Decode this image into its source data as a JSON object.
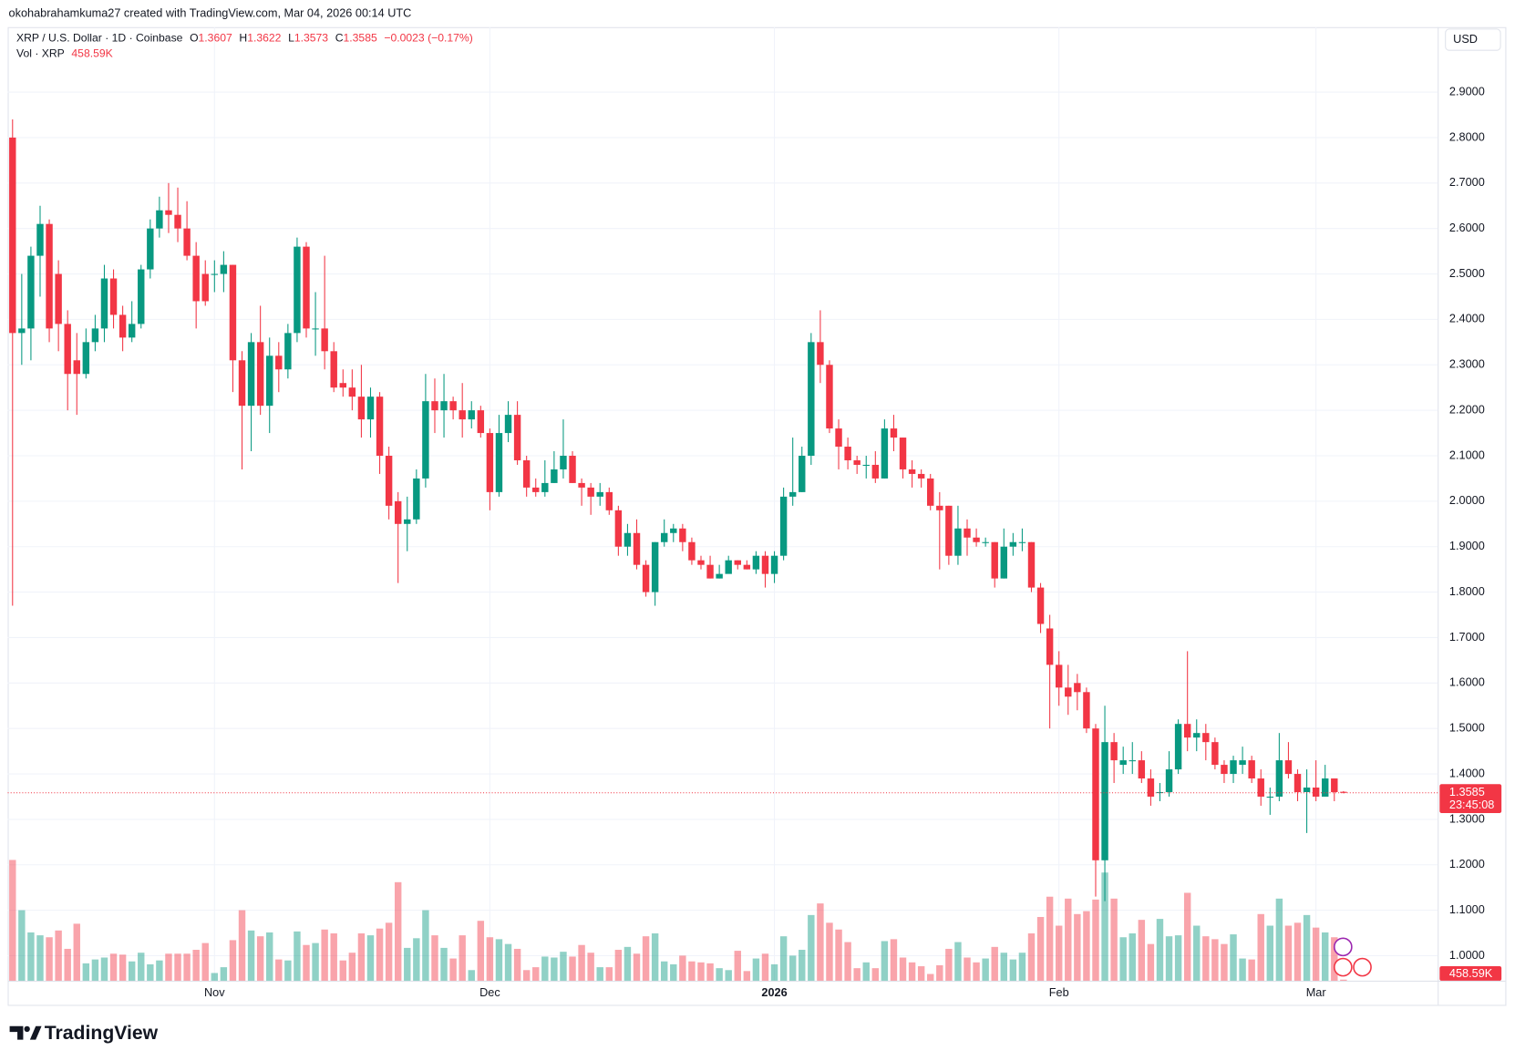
{
  "attribution": "okohabrahamkuma27 created with TradingView.com, Mar 04, 2026 00:14 UTC",
  "currency": "USD",
  "countdown": "23:45:08",
  "brand": "TradingView",
  "chart_data": {
    "type": "candlestick",
    "title": "XRP / U.S. Dollar · 1D · Coinbase",
    "ohlc_letters": [
      "O",
      "H",
      "L",
      "C"
    ],
    "change": "−0.0023 (−0.17%)",
    "up_color": "#089981",
    "down_color": "#f23645",
    "grid": true,
    "categories": [
      null,
      null,
      null,
      null,
      null,
      null,
      null,
      null,
      null,
      null,
      null,
      null,
      null,
      null,
      null,
      null,
      null,
      null,
      null,
      null,
      null,
      null,
      "Nov",
      null,
      null,
      null,
      null,
      null,
      null,
      null,
      null,
      null,
      null,
      null,
      null,
      null,
      null,
      null,
      null,
      null,
      null,
      null,
      null,
      null,
      null,
      null,
      null,
      null,
      null,
      null,
      null,
      null,
      "Dec",
      null,
      null,
      null,
      null,
      null,
      null,
      null,
      null,
      null,
      null,
      null,
      null,
      null,
      null,
      null,
      null,
      null,
      null,
      null,
      null,
      null,
      null,
      null,
      null,
      null,
      null,
      null,
      null,
      null,
      null,
      "2026",
      null,
      null,
      null,
      null,
      null,
      null,
      null,
      null,
      null,
      null,
      null,
      null,
      null,
      null,
      null,
      null,
      null,
      null,
      null,
      null,
      null,
      null,
      null,
      null,
      null,
      null,
      null,
      null,
      null,
      null,
      "Feb",
      null,
      null,
      null,
      null,
      null,
      null,
      null,
      null,
      null,
      null,
      null,
      null,
      null,
      null,
      null,
      null,
      null,
      null,
      null,
      null,
      null,
      null,
      null,
      null,
      null,
      null,
      null,
      "Mar",
      null,
      null,
      null
    ],
    "open": [
      2.8,
      2.37,
      2.38,
      2.54,
      2.61,
      2.5,
      2.39,
      2.31,
      2.28,
      2.35,
      2.38,
      2.49,
      2.41,
      2.36,
      2.39,
      2.51,
      2.6,
      2.64,
      2.63,
      2.6,
      2.54,
      2.5,
      2.5,
      2.5,
      2.52,
      2.31,
      2.21,
      2.35,
      2.21,
      2.32,
      2.29,
      2.37,
      2.56,
      2.38,
      2.38,
      2.33,
      2.26,
      2.25,
      2.23,
      2.18,
      2.23,
      2.1,
      2.0,
      1.95,
      1.96,
      2.05,
      2.22,
      2.2,
      2.22,
      2.2,
      2.18,
      2.2,
      2.15,
      2.02,
      2.15,
      2.19,
      2.09,
      2.03,
      2.02,
      2.04,
      2.07,
      2.1,
      2.04,
      2.03,
      2.01,
      2.02,
      1.98,
      1.9,
      1.93,
      1.86,
      1.8,
      1.91,
      1.93,
      1.94,
      1.91,
      1.87,
      1.86,
      1.83,
      1.84,
      1.87,
      1.86,
      1.85,
      1.88,
      1.84,
      1.88,
      2.01,
      2.02,
      2.1,
      2.35,
      2.3,
      2.16,
      2.12,
      2.09,
      2.08,
      2.08,
      2.05,
      2.16,
      2.14,
      2.07,
      2.06,
      2.05,
      1.99,
      1.99,
      1.88,
      1.94,
      1.92,
      1.91,
      1.91,
      1.83,
      1.9,
      1.91,
      1.91,
      1.81,
      1.72,
      1.64,
      1.59,
      1.6,
      1.58,
      1.5,
      1.21,
      1.47,
      1.42,
      1.43,
      1.43,
      1.39,
      1.36,
      1.36,
      1.41,
      1.51,
      1.48,
      1.49,
      1.47,
      1.42,
      1.4,
      1.42,
      1.43,
      1.39,
      1.35,
      1.35,
      1.43,
      1.4,
      1.36,
      1.37,
      1.35,
      1.39,
      1.3607
    ],
    "high": [
      2.84,
      2.5,
      2.56,
      2.65,
      2.62,
      2.53,
      2.42,
      2.37,
      2.38,
      2.41,
      2.52,
      2.51,
      2.43,
      2.44,
      2.52,
      2.62,
      2.67,
      2.7,
      2.69,
      2.66,
      2.57,
      2.53,
      2.53,
      2.55,
      2.52,
      2.33,
      2.37,
      2.43,
      2.36,
      2.35,
      2.39,
      2.58,
      2.57,
      2.46,
      2.54,
      2.35,
      2.29,
      2.29,
      2.3,
      2.25,
      2.24,
      2.12,
      2.02,
      2.01,
      2.07,
      2.28,
      2.27,
      2.28,
      2.23,
      2.26,
      2.22,
      2.21,
      2.16,
      2.19,
      2.22,
      2.22,
      2.1,
      2.05,
      2.09,
      2.11,
      2.18,
      2.11,
      2.05,
      2.04,
      2.04,
      2.03,
      1.99,
      1.95,
      1.96,
      1.87,
      1.91,
      1.96,
      1.95,
      1.95,
      1.92,
      1.88,
      1.88,
      1.86,
      1.88,
      1.87,
      1.87,
      1.89,
      1.89,
      1.89,
      2.03,
      2.14,
      2.12,
      2.37,
      2.42,
      2.31,
      2.18,
      2.14,
      2.1,
      2.1,
      2.11,
      2.18,
      2.19,
      2.14,
      2.09,
      2.07,
      2.06,
      2.02,
      1.99,
      1.99,
      1.96,
      1.94,
      1.92,
      1.91,
      1.94,
      1.93,
      1.94,
      1.91,
      1.82,
      1.75,
      1.67,
      1.64,
      1.62,
      1.59,
      1.51,
      1.55,
      1.49,
      1.46,
      1.47,
      1.45,
      1.41,
      1.38,
      1.45,
      1.52,
      1.67,
      1.52,
      1.51,
      1.48,
      1.43,
      1.44,
      1.46,
      1.44,
      1.41,
      1.37,
      1.49,
      1.47,
      1.41,
      1.41,
      1.43,
      1.42,
      1.39,
      1.3622
    ],
    "low": [
      1.77,
      2.3,
      2.31,
      2.45,
      2.35,
      2.33,
      2.2,
      2.19,
      2.27,
      2.33,
      2.35,
      2.38,
      2.33,
      2.35,
      2.38,
      2.49,
      2.58,
      2.59,
      2.57,
      2.53,
      2.38,
      2.43,
      2.46,
      2.46,
      2.24,
      2.07,
      2.11,
      2.19,
      2.15,
      2.24,
      2.27,
      2.35,
      2.36,
      2.32,
      2.29,
      2.24,
      2.23,
      2.2,
      2.14,
      2.14,
      2.06,
      1.96,
      1.82,
      1.89,
      1.95,
      2.03,
      2.15,
      2.14,
      2.18,
      2.14,
      2.16,
      2.14,
      1.98,
      2.01,
      2.13,
      2.08,
      2.01,
      2.01,
      2.01,
      2.04,
      2.05,
      2.04,
      1.99,
      1.97,
      1.99,
      1.97,
      1.88,
      1.88,
      1.85,
      1.79,
      1.77,
      1.9,
      1.91,
      1.89,
      1.86,
      1.85,
      1.83,
      1.83,
      1.85,
      1.85,
      1.85,
      1.84,
      1.81,
      1.82,
      1.87,
      1.99,
      2.02,
      2.08,
      2.26,
      2.15,
      2.07,
      2.07,
      2.06,
      2.05,
      2.04,
      2.05,
      2.11,
      2.05,
      2.03,
      2.03,
      1.98,
      1.85,
      1.86,
      1.86,
      1.88,
      1.9,
      1.9,
      1.81,
      1.83,
      1.88,
      1.89,
      1.8,
      1.71,
      1.5,
      1.55,
      1.53,
      1.54,
      1.49,
      1.13,
      1.12,
      1.38,
      1.4,
      1.4,
      1.38,
      1.33,
      1.34,
      1.35,
      1.4,
      1.45,
      1.45,
      1.43,
      1.41,
      1.38,
      1.38,
      1.4,
      1.38,
      1.33,
      1.31,
      1.34,
      1.39,
      1.34,
      1.27,
      1.34,
      1.35,
      1.34,
      1.3573
    ],
    "close": [
      2.37,
      2.38,
      2.54,
      2.61,
      2.38,
      2.39,
      2.28,
      2.28,
      2.35,
      2.38,
      2.49,
      2.41,
      2.36,
      2.39,
      2.51,
      2.6,
      2.64,
      2.63,
      2.6,
      2.54,
      2.44,
      2.44,
      2.5,
      2.52,
      2.31,
      2.21,
      2.35,
      2.21,
      2.32,
      2.29,
      2.37,
      2.56,
      2.38,
      2.38,
      2.33,
      2.25,
      2.25,
      2.23,
      2.18,
      2.23,
      2.1,
      1.99,
      1.95,
      1.96,
      2.05,
      2.22,
      2.2,
      2.22,
      2.2,
      2.18,
      2.2,
      2.15,
      2.02,
      2.15,
      2.19,
      2.09,
      2.03,
      2.02,
      2.04,
      2.07,
      2.1,
      2.04,
      2.03,
      2.01,
      2.02,
      1.98,
      1.9,
      1.93,
      1.86,
      1.8,
      1.91,
      1.93,
      1.94,
      1.91,
      1.87,
      1.86,
      1.83,
      1.84,
      1.87,
      1.86,
      1.85,
      1.88,
      1.84,
      1.88,
      2.01,
      2.02,
      2.1,
      2.35,
      2.3,
      2.16,
      2.12,
      2.09,
      2.08,
      2.08,
      2.05,
      2.16,
      2.14,
      2.07,
      2.06,
      2.05,
      1.99,
      1.98,
      1.88,
      1.94,
      1.92,
      1.91,
      1.91,
      1.83,
      1.9,
      1.91,
      1.91,
      1.81,
      1.73,
      1.64,
      1.59,
      1.57,
      1.58,
      1.5,
      1.21,
      1.47,
      1.43,
      1.43,
      1.43,
      1.39,
      1.35,
      1.36,
      1.41,
      1.51,
      1.48,
      1.49,
      1.47,
      1.42,
      1.4,
      1.43,
      1.43,
      1.39,
      1.35,
      1.35,
      1.43,
      1.4,
      1.36,
      1.37,
      1.35,
      1.39,
      1.36,
      1.3585
    ],
    "volume": {
      "name": "Vol · XRP",
      "values": [
        50000000,
        29200000,
        20000000,
        18800000,
        18000000,
        20800000,
        13200000,
        23600000,
        7200000,
        8800000,
        9600000,
        11200000,
        10800000,
        8000000,
        11600000,
        6800000,
        8400000,
        11200000,
        11200000,
        11200000,
        12800000,
        15600000,
        3200000,
        5600000,
        16800000,
        29200000,
        20800000,
        18400000,
        20000000,
        8800000,
        8400000,
        20400000,
        14800000,
        15600000,
        21200000,
        19600000,
        8400000,
        11600000,
        19600000,
        18800000,
        21600000,
        24000000,
        40800000,
        13600000,
        17600000,
        29200000,
        18800000,
        13600000,
        9200000,
        18800000,
        4400000,
        24800000,
        18000000,
        17200000,
        15200000,
        13200000,
        4400000,
        5600000,
        10000000,
        9600000,
        12000000,
        10000000,
        14800000,
        11600000,
        5600000,
        5600000,
        12800000,
        14000000,
        11200000,
        18400000,
        19600000,
        8000000,
        6800000,
        10400000,
        8000000,
        7600000,
        7200000,
        5200000,
        4400000,
        12400000,
        4000000,
        9200000,
        11200000,
        6800000,
        18400000,
        10400000,
        12800000,
        27200000,
        32000000,
        24000000,
        21200000,
        16000000,
        5200000,
        7600000,
        5200000,
        16400000,
        17200000,
        9600000,
        7600000,
        6000000,
        2800000,
        6400000,
        13200000,
        16000000,
        9600000,
        7600000,
        9200000,
        14000000,
        11600000,
        8800000,
        11600000,
        19600000,
        26400000,
        34800000,
        22800000,
        34000000,
        27600000,
        28800000,
        33600000,
        44800000,
        34000000,
        18000000,
        19600000,
        25200000,
        15200000,
        25600000,
        18400000,
        18800000,
        36400000,
        22800000,
        18400000,
        17200000,
        15200000,
        19200000,
        9200000,
        8800000,
        27600000,
        22800000,
        34000000,
        22800000,
        24000000,
        27200000,
        22000000,
        20000000,
        18000000,
        458590
      ],
      "value_labels": [
        null,
        null,
        null,
        null,
        null,
        null,
        null,
        null,
        null,
        null,
        null,
        null,
        null,
        null,
        null,
        null,
        null,
        null,
        null,
        null,
        null,
        null,
        null,
        null,
        null,
        null,
        null,
        null,
        null,
        null,
        null,
        null,
        null,
        null,
        null,
        null,
        null,
        null,
        null,
        null,
        null,
        null,
        null,
        null,
        null,
        null,
        null,
        null,
        null,
        null,
        null,
        null,
        null,
        null,
        null,
        null,
        null,
        null,
        null,
        null,
        null,
        null,
        null,
        null,
        null,
        null,
        null,
        null,
        null,
        null,
        null,
        null,
        null,
        null,
        null,
        null,
        null,
        null,
        null,
        null,
        null,
        null,
        null,
        null,
        null,
        null,
        null,
        null,
        null,
        null,
        null,
        null,
        null,
        null,
        null,
        null,
        null,
        null,
        null,
        null,
        null,
        null,
        null,
        null,
        null,
        null,
        null,
        null,
        null,
        null,
        null,
        null,
        null,
        null,
        null,
        null,
        null,
        null,
        null,
        null,
        null,
        null,
        null,
        null,
        null,
        null,
        null,
        null,
        null,
        null,
        null,
        null,
        null,
        null,
        null,
        null,
        null,
        null,
        null,
        null,
        null,
        null,
        null,
        null,
        null,
        "458.59K"
      ]
    },
    "ylim": [
      0.945,
      3.043
    ],
    "yticks": [
      {
        "value": 1.0,
        "label": "1.0000"
      },
      {
        "value": 1.1,
        "label": "1.1000"
      },
      {
        "value": 1.2,
        "label": "1.2000"
      },
      {
        "value": 1.3,
        "label": "1.3000"
      },
      {
        "value": 1.4,
        "label": "1.4000"
      },
      {
        "value": 1.5,
        "label": "1.5000"
      },
      {
        "value": 1.6,
        "label": "1.6000"
      },
      {
        "value": 1.7,
        "label": "1.7000"
      },
      {
        "value": 1.8,
        "label": "1.8000"
      },
      {
        "value": 1.9,
        "label": "1.9000"
      },
      {
        "value": 2.0,
        "label": "2.0000"
      },
      {
        "value": 2.1,
        "label": "2.1000"
      },
      {
        "value": 2.2,
        "label": "2.2000"
      },
      {
        "value": 2.3,
        "label": "2.3000"
      },
      {
        "value": 2.4,
        "label": "2.4000"
      },
      {
        "value": 2.5,
        "label": "2.5000"
      },
      {
        "value": 2.6,
        "label": "2.6000"
      },
      {
        "value": 2.7,
        "label": "2.7000"
      },
      {
        "value": 2.8,
        "label": "2.8000"
      },
      {
        "value": 2.9,
        "label": "2.9000"
      }
    ]
  }
}
